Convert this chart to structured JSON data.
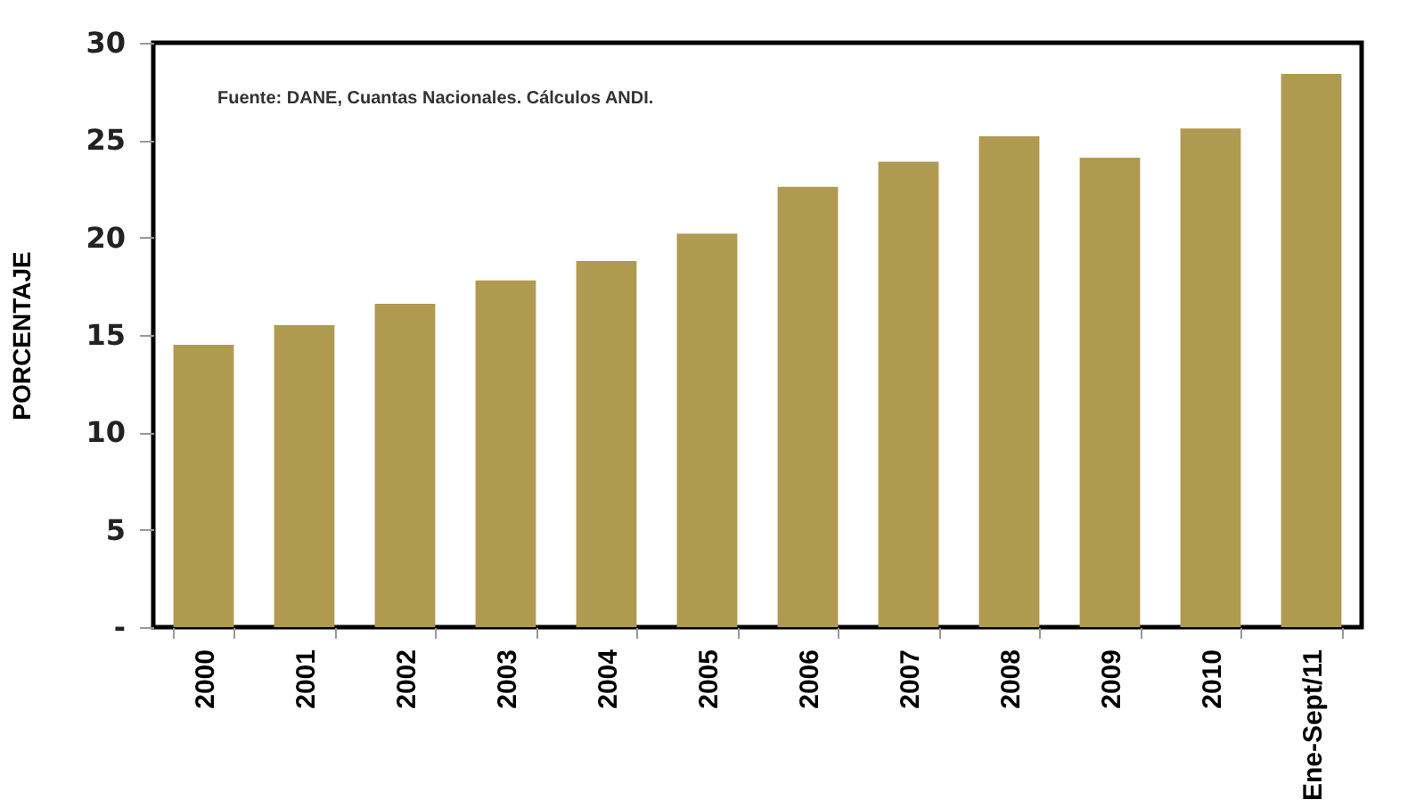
{
  "chart_data": {
    "type": "bar",
    "categories": [
      "2000",
      "2001",
      "2002",
      "2003",
      "2004",
      "2005",
      "2006",
      "2007",
      "2008",
      "2009",
      "2010",
      "Ene-Sept/11"
    ],
    "values": [
      14.5,
      15.5,
      16.6,
      17.8,
      18.8,
      20.2,
      22.6,
      23.9,
      25.2,
      24.1,
      25.6,
      28.4
    ],
    "color": "#b09a50",
    "ylabel": "PORCENTAJE",
    "ylim": [
      0,
      30
    ],
    "yticks": [
      {
        "value": 0,
        "label": "-"
      },
      5,
      10,
      15,
      20,
      25,
      30
    ],
    "annotations": [
      "Fuente: DANE, Cuantas Nacionales. Cálculos ANDI."
    ]
  }
}
